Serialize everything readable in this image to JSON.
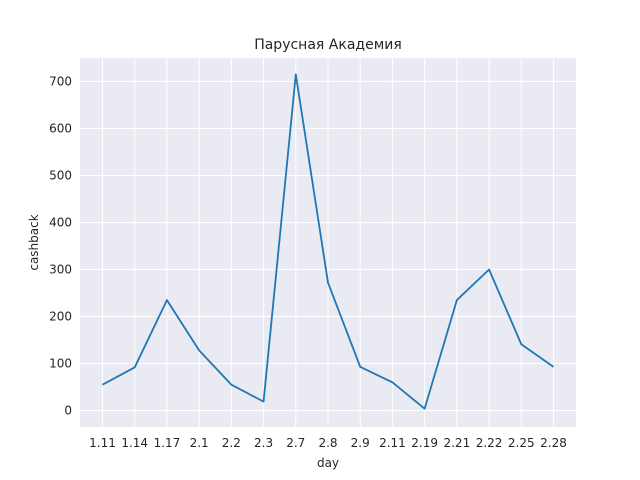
{
  "chart_data": {
    "type": "line",
    "title": "Парусная Академия",
    "xlabel": "day",
    "ylabel": "cashback",
    "categories": [
      "1.11",
      "1.14",
      "1.17",
      "2.1",
      "2.2",
      "2.3",
      "2.7",
      "2.8",
      "2.9",
      "2.11",
      "2.19",
      "2.21",
      "2.22",
      "2.25",
      "2.28"
    ],
    "series": [
      {
        "values": [
          55,
          92,
          235,
          128,
          55,
          19,
          715,
          272,
          93,
          60,
          4,
          235,
          300,
          141,
          93
        ]
      }
    ],
    "ylim": [
      -35,
      750
    ],
    "yticks": [
      0,
      100,
      200,
      300,
      400,
      500,
      600,
      700
    ],
    "grid": true,
    "colors": {
      "line": "#1f77b4",
      "plot_background": "#eaeaf2",
      "grid": "#ffffff"
    }
  }
}
